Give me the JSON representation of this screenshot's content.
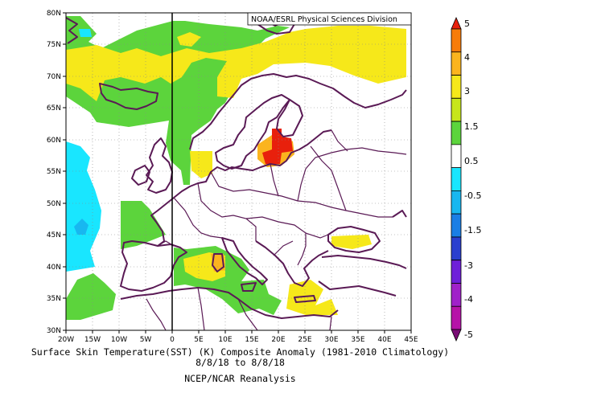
{
  "source_label": "NOAA/ESRL Physical Sciences Division",
  "x_ticks": [
    "20W",
    "15W",
    "10W",
    "5W",
    "0",
    "5E",
    "10E",
    "15E",
    "20E",
    "25E",
    "30E",
    "35E",
    "40E",
    "45E"
  ],
  "y_ticks": [
    "30N",
    "35N",
    "40N",
    "45N",
    "50N",
    "55N",
    "60N",
    "65N",
    "70N",
    "75N",
    "80N"
  ],
  "colorbar": {
    "labels": [
      "5",
      "4",
      "3",
      "1.5",
      "0.5",
      "-0.5",
      "-1.5",
      "-3",
      "-4",
      "-5"
    ],
    "colors": [
      "#e8200c",
      "#f77c0a",
      "#fbb41e",
      "#f6e81a",
      "#c7e61b",
      "#5cd43c",
      "#ffffff",
      "#19e6ff",
      "#18b7f0",
      "#1a7ee5",
      "#2a3fcf",
      "#6e1fd9",
      "#a021c9",
      "#b613a8",
      "#7a0e75"
    ]
  },
  "caption": {
    "line1": "Surface Skin Temperature(SST) (K) Composite Anomaly (1981-2010 Climatology)",
    "line2": "8/8/18  to 8/8/18",
    "line3": "NCEP/NCAR Reanalysis"
  },
  "map_data": {
    "lon_range": [
      -20,
      45
    ],
    "lat_range": [
      30,
      80
    ]
  }
}
